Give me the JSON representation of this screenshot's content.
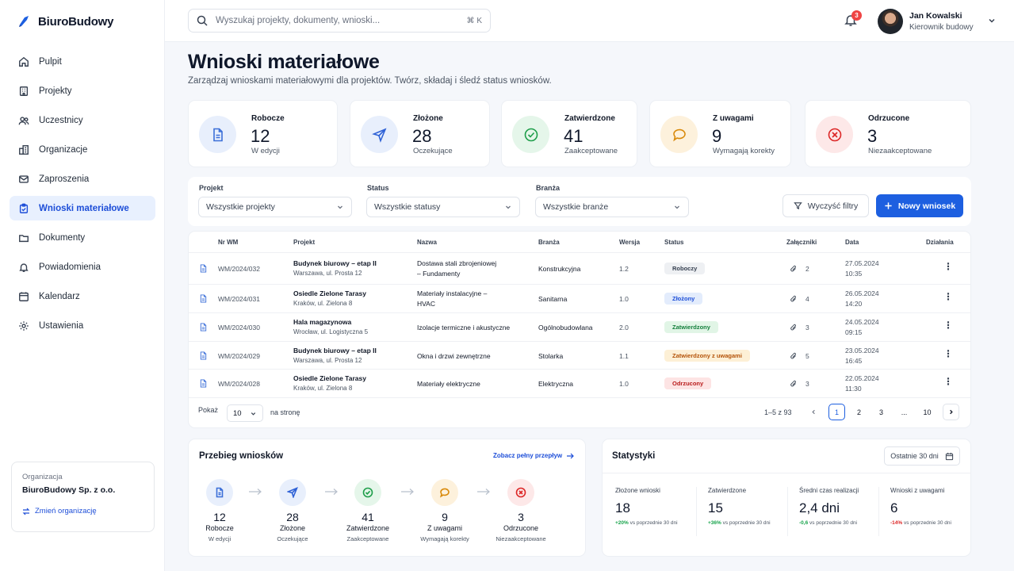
{
  "app": {
    "name": "BiuroBudowy"
  },
  "sidebar": {
    "items": [
      {
        "label": "Pulpit",
        "icon": "home-icon"
      },
      {
        "label": "Projekty",
        "icon": "building-icon"
      },
      {
        "label": "Uczestnicy",
        "icon": "users-icon"
      },
      {
        "label": "Organizacje",
        "icon": "organization-icon"
      },
      {
        "label": "Zaproszenia",
        "icon": "mail-icon"
      },
      {
        "label": "Wnioski materiałowe",
        "icon": "clipboard-icon",
        "active": true
      },
      {
        "label": "Dokumenty",
        "icon": "folder-icon"
      },
      {
        "label": "Powiadomienia",
        "icon": "bell-icon"
      },
      {
        "label": "Kalendarz",
        "icon": "calendar-icon"
      },
      {
        "label": "Ustawienia",
        "icon": "gear-icon"
      }
    ],
    "org": {
      "label": "Organizacja",
      "name": "BiuroBudowy Sp. z o.o.",
      "change": "Zmień organizację"
    }
  },
  "topbar": {
    "search_placeholder": "Wyszukaj projekty, dokumenty, wnioski...",
    "shortcut": "⌘ K",
    "notifications": "3",
    "user_name": "Jan Kowalski",
    "user_role": "Kierownik budowy"
  },
  "page": {
    "title": "Wnioski materiałowe",
    "subtitle": "Zarządzaj wnioskami materiałowymi dla projektów. Twórz, składaj i śledź status wniosków."
  },
  "stats": [
    {
      "label": "Robocze",
      "value": "12",
      "desc": "W edycji",
      "color": "#3b6fd8",
      "bg": "#e8effc"
    },
    {
      "label": "Złożone",
      "value": "28",
      "desc": "Oczekujące",
      "color": "#2f62d6",
      "bg": "#e8effc"
    },
    {
      "label": "Zatwierdzone",
      "value": "41",
      "desc": "Zaakceptowane",
      "color": "#1e9e4a",
      "bg": "#e5f6ea"
    },
    {
      "label": "Z uwagami",
      "value": "9",
      "desc": "Wymagają korekty",
      "color": "#d98a0b",
      "bg": "#fdf1dc"
    },
    {
      "label": "Odrzucone",
      "value": "3",
      "desc": "Niezaakceptowane",
      "color": "#dc2626",
      "bg": "#fde8e8"
    }
  ],
  "filters": {
    "project": {
      "label": "Projekt",
      "value": "Wszystkie projekty"
    },
    "status": {
      "label": "Status",
      "value": "Wszystkie statusy"
    },
    "branch": {
      "label": "Branża",
      "value": "Wszystkie branże"
    },
    "clear": "Wyczyść filtry",
    "new": "Nowy wniosek"
  },
  "table": {
    "headers": [
      "Nr WM",
      "Projekt",
      "Nazwa",
      "Branża",
      "Wersja",
      "Status",
      "Załączniki",
      "Data",
      "Działania"
    ],
    "rows": [
      {
        "nr": "WM/2024/032",
        "project": "Budynek biurowy – etap II",
        "address": "Warszawa, ul. Prosta 12",
        "name1": "Dostawa stali zbrojeniowej",
        "name2": "– Fundamenty",
        "branch": "Konstrukcyjna",
        "version": "1.2",
        "status": "Roboczy",
        "status_bg": "#eef0f3",
        "status_fg": "#374151",
        "attachments": "2",
        "date": "27.05.2024",
        "time": "10:35"
      },
      {
        "nr": "WM/2024/031",
        "project": "Osiedle Zielone Tarasy",
        "address": "Kraków, ul. Zielona 8",
        "name1": "Materiały instalacyjne –",
        "name2": "HVAC",
        "branch": "Sanitarna",
        "version": "1.0",
        "status": "Złożony",
        "status_bg": "#e3ecfc",
        "status_fg": "#1d4ed8",
        "attachments": "4",
        "date": "26.05.2024",
        "time": "14:20"
      },
      {
        "nr": "WM/2024/030",
        "project": "Hala magazynowa",
        "address": "Wrocław, ul. Logistyczna 5",
        "name1": "Izolacje termiczne i akustyczne",
        "name2": "",
        "branch": "Ogólnobudowlana",
        "version": "2.0",
        "status": "Zatwierdzony",
        "status_bg": "#e1f5e6",
        "status_fg": "#15803d",
        "attachments": "3",
        "date": "24.05.2024",
        "time": "09:15"
      },
      {
        "nr": "WM/2024/029",
        "project": "Budynek biurowy – etap II",
        "address": "Warszawa, ul. Prosta 12",
        "name1": "Okna i drzwi zewnętrzne",
        "name2": "",
        "branch": "Stolarka",
        "version": "1.1",
        "status": "Zatwierdzony z uwagami",
        "status_bg": "#fdf0d6",
        "status_fg": "#b45309",
        "attachments": "5",
        "date": "23.05.2024",
        "time": "16:45"
      },
      {
        "nr": "WM/2024/028",
        "project": "Osiedle Zielone Tarasy",
        "address": "Kraków, ul. Zielona 8",
        "name1": "Materiały elektryczne",
        "name2": "",
        "branch": "Elektryczna",
        "version": "1.0",
        "status": "Odrzucony",
        "status_bg": "#fde4e4",
        "status_fg": "#b91c1c",
        "attachments": "3",
        "date": "22.05.2024",
        "time": "11:30"
      }
    ]
  },
  "pagination": {
    "show": "Pokaż",
    "per_page": "10",
    "suffix": "na stronę",
    "range": "1–5 z 93",
    "pages": [
      "1",
      "2",
      "3",
      "...",
      "10"
    ]
  },
  "flow": {
    "title": "Przebieg wniosków",
    "link": "Zobacz pełny przepływ",
    "steps": [
      {
        "value": "12",
        "label": "Robocze",
        "desc": "W edycji"
      },
      {
        "value": "28",
        "label": "Złożone",
        "desc": "Oczekujące"
      },
      {
        "value": "41",
        "label": "Zatwierdzone",
        "desc": "Zaakceptowane"
      },
      {
        "value": "9",
        "label": "Z uwagami",
        "desc": "Wymagają korekty"
      },
      {
        "value": "3",
        "label": "Odrzucone",
        "desc": "Niezaakceptowane"
      }
    ]
  },
  "statistics": {
    "title": "Statystyki",
    "range": "Ostatnie 30 dni",
    "metrics": [
      {
        "label": "Złożone wnioski",
        "value": "18",
        "change": "+20%",
        "dir": "up",
        "suffix": "vs poprzednie 30 dni"
      },
      {
        "label": "Zatwierdzone",
        "value": "15",
        "change": "+36%",
        "dir": "up",
        "suffix": "vs poprzednie 30 dni"
      },
      {
        "label": "Średni czas realizacji",
        "value": "2,4 dni",
        "change": "-0,6",
        "dir": "up",
        "suffix": "vs poprzednie 30 dni"
      },
      {
        "label": "Wnioski z uwagami",
        "value": "6",
        "change": "-14%",
        "dir": "down",
        "suffix": "vs poprzednie 30 dni"
      }
    ]
  }
}
